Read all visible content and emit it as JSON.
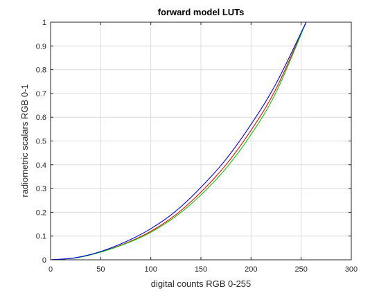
{
  "chart_data": {
    "type": "line",
    "title": "forward model LUTs",
    "xlabel": "digital counts RGB 0-255",
    "ylabel": "radiometric scalars RGB 0-1",
    "xlim": [
      0,
      300
    ],
    "ylim": [
      0,
      1
    ],
    "xticks": [
      0,
      50,
      100,
      150,
      200,
      250,
      300
    ],
    "yticks": [
      0,
      0.1,
      0.2,
      0.3,
      0.4,
      0.5,
      0.6,
      0.7,
      0.8,
      0.9,
      1
    ],
    "grid": true,
    "series": [
      {
        "color": "#ff0000",
        "x": [
          0,
          25,
          50,
          75,
          100,
          125,
          150,
          175,
          200,
          225,
          255
        ],
        "y": [
          0,
          0.008,
          0.033,
          0.07,
          0.12,
          0.19,
          0.285,
          0.4,
          0.545,
          0.72,
          1.0
        ]
      },
      {
        "color": "#00cc00",
        "x": [
          0,
          25,
          50,
          75,
          100,
          125,
          150,
          175,
          200,
          225,
          255
        ],
        "y": [
          0,
          0.008,
          0.032,
          0.068,
          0.116,
          0.183,
          0.273,
          0.385,
          0.527,
          0.705,
          1.0
        ]
      },
      {
        "color": "#0000ff",
        "x": [
          0,
          25,
          50,
          75,
          100,
          125,
          150,
          175,
          200,
          225,
          255
        ],
        "y": [
          0,
          0.009,
          0.035,
          0.076,
          0.131,
          0.205,
          0.305,
          0.423,
          0.57,
          0.742,
          1.0
        ]
      }
    ]
  }
}
